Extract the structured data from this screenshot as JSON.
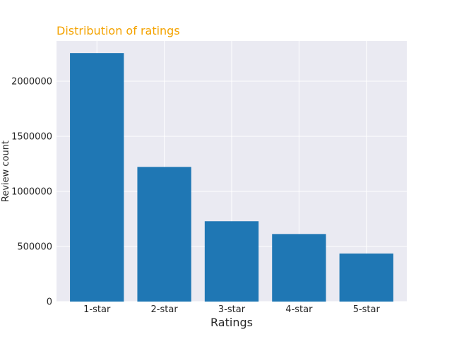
{
  "chart_data": {
    "type": "bar",
    "title": "Distribution of ratings",
    "xlabel": "Ratings",
    "ylabel": "Review count",
    "categories": [
      "1-star",
      "2-star",
      "3-star",
      "4-star",
      "5-star"
    ],
    "values": [
      2255000,
      1222000,
      729000,
      613000,
      436000
    ],
    "ylim": [
      0,
      2365000
    ],
    "yticks": [
      0,
      500000,
      1000000,
      1500000,
      2000000
    ],
    "ytick_labels": [
      "0",
      "500000",
      "1000000",
      "1500000",
      "2000000"
    ],
    "grid": true,
    "legend": "none",
    "colors": {
      "bar": "#1f77b4",
      "plot_background": "#eaeaf2",
      "grid": "#ffffff",
      "title": "#f4a300"
    }
  }
}
